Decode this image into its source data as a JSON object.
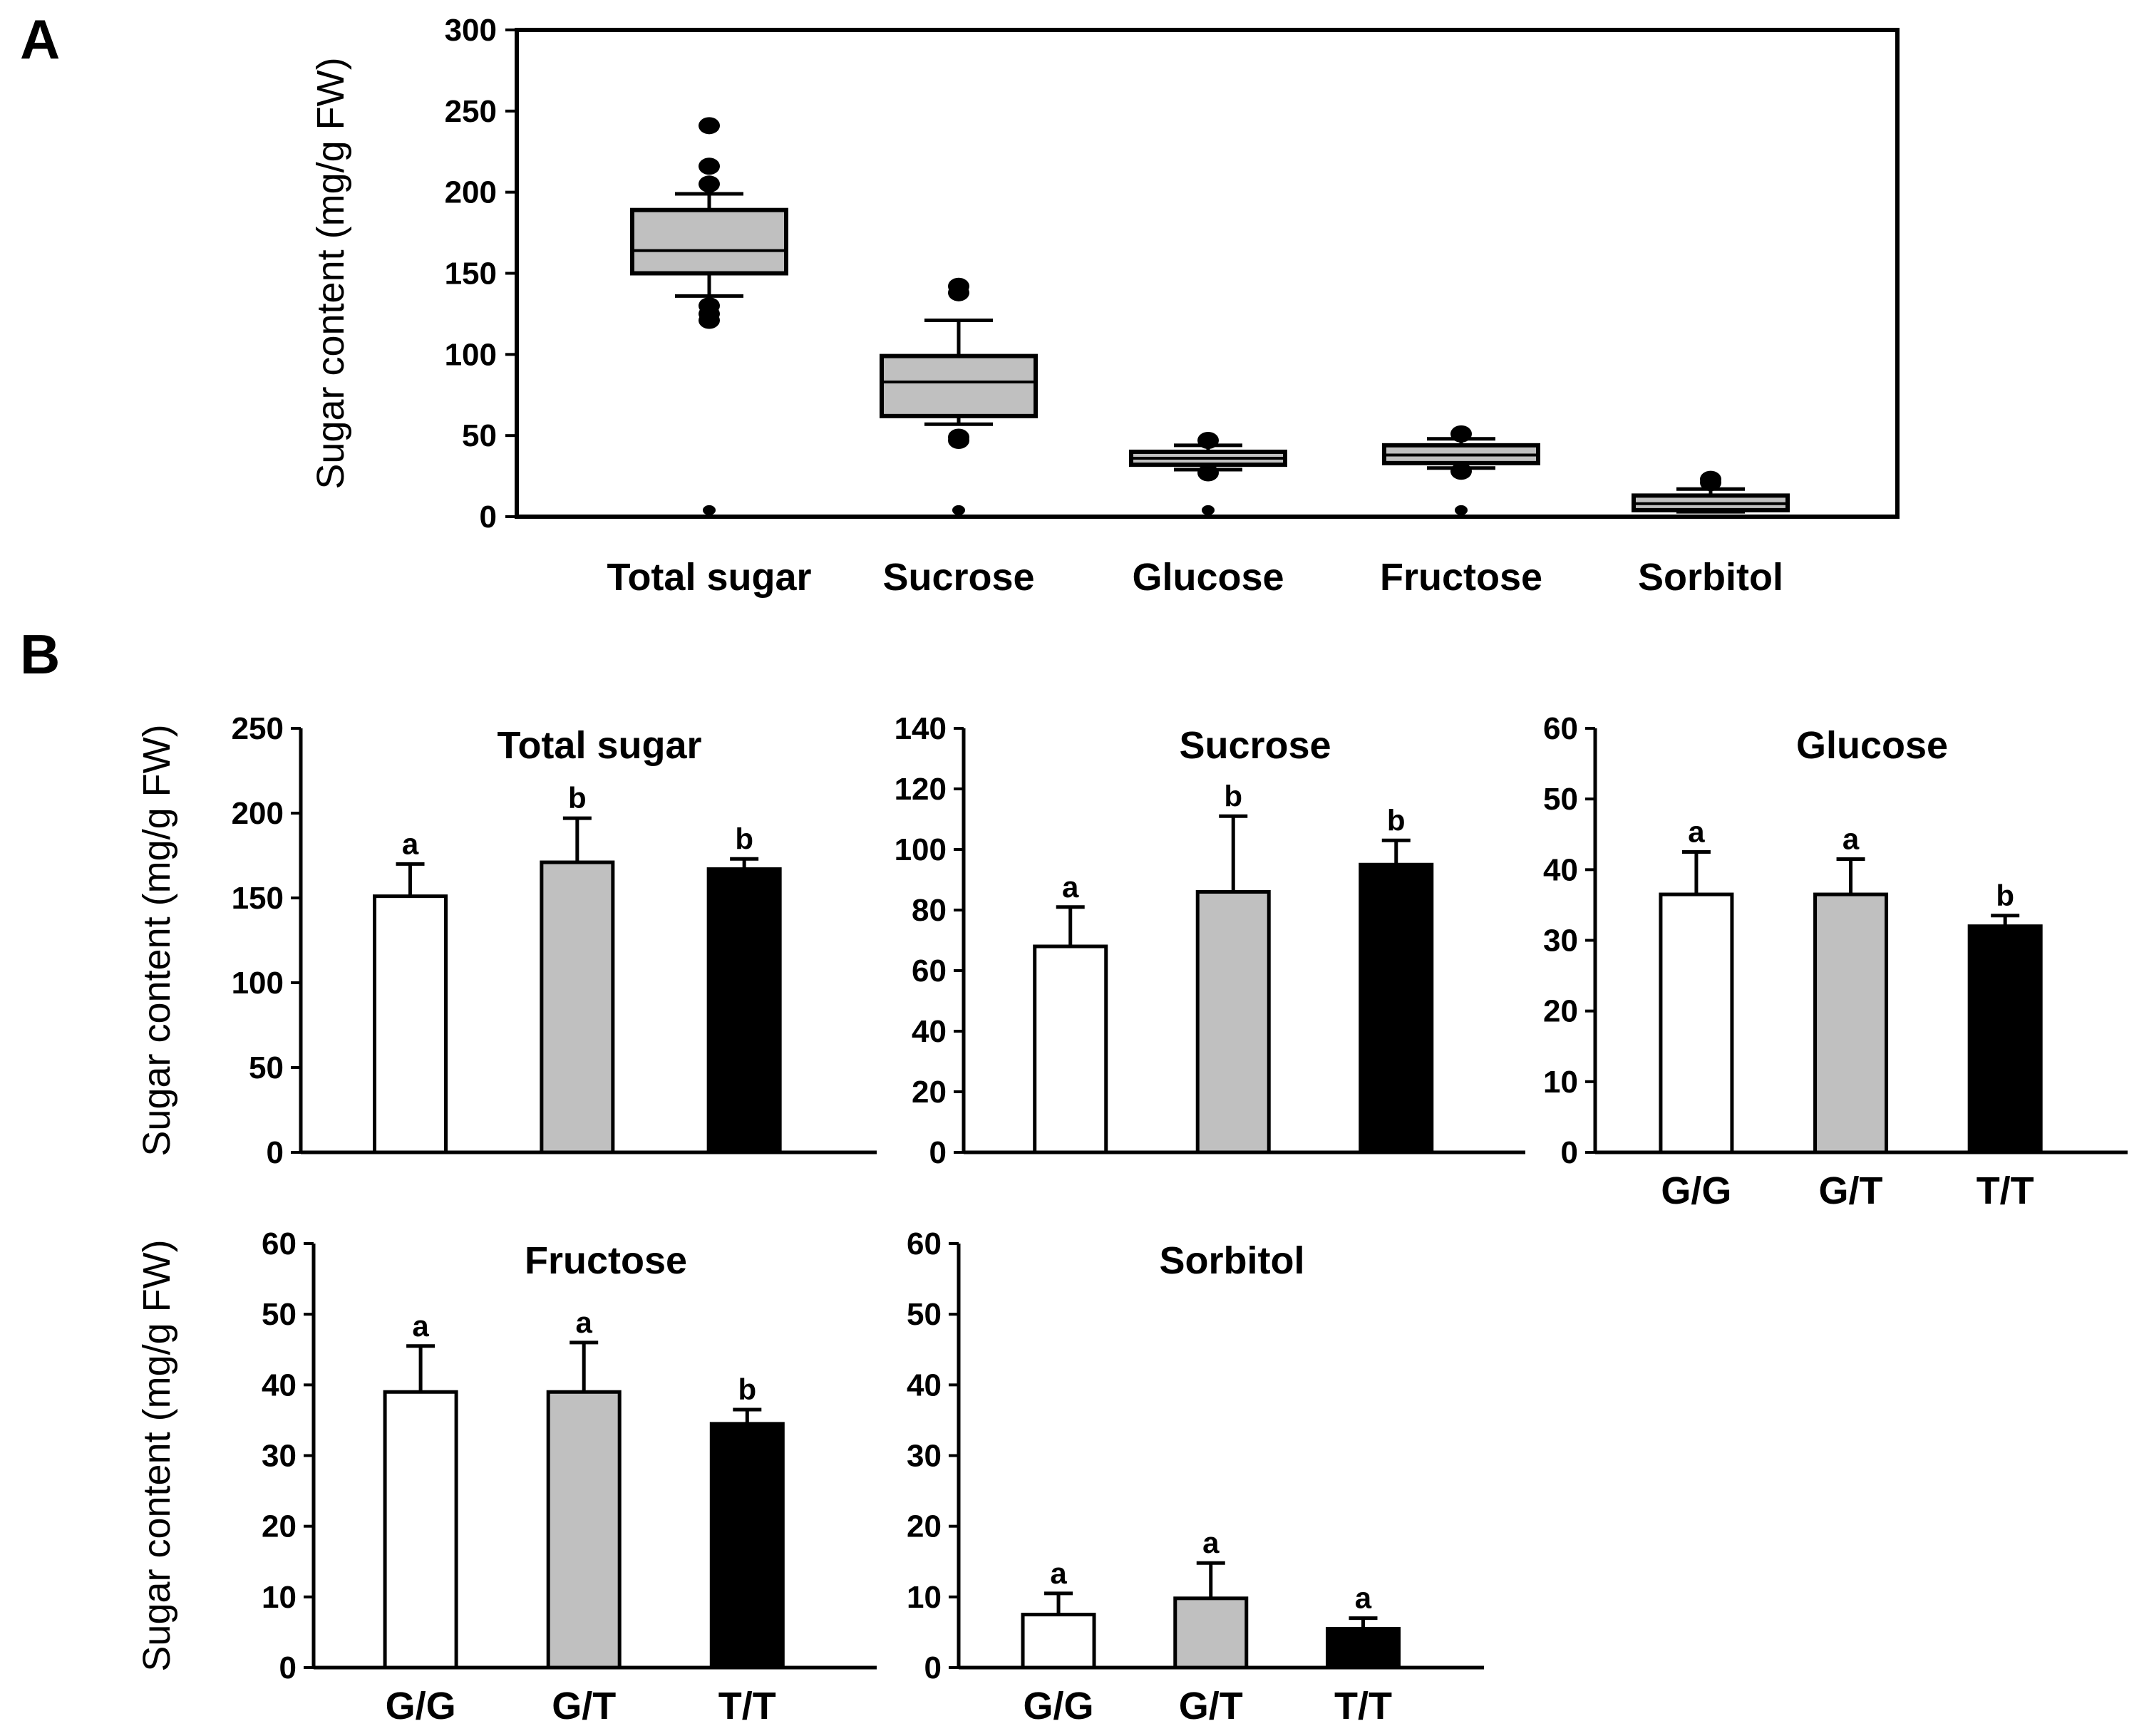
{
  "panel_labels": {
    "a": "A",
    "b": "B"
  },
  "chart_data": [
    {
      "id": "boxplot",
      "type": "box",
      "ylabel": "Sugar content (mg/g FW)",
      "ylim": [
        0,
        300
      ],
      "yticks": [
        0,
        50,
        100,
        150,
        200,
        250,
        300
      ],
      "categories": [
        "Total sugar",
        "Sucrose",
        "Glucose",
        "Fructose",
        "Sorbitol"
      ],
      "boxes": [
        {
          "whisker_low": 136,
          "q1": 150,
          "median": 164,
          "q3": 189,
          "whisker_high": 199,
          "outliers": [
            121,
            125,
            130,
            205,
            216,
            241,
            4
          ]
        },
        {
          "whisker_low": 57,
          "q1": 62,
          "median": 83,
          "q3": 99,
          "whisker_high": 121,
          "outliers": [
            47,
            49,
            138,
            142,
            4
          ]
        },
        {
          "whisker_low": 29,
          "q1": 32,
          "median": 36,
          "q3": 40,
          "whisker_high": 44,
          "outliers": [
            27,
            47,
            4
          ]
        },
        {
          "whisker_low": 30,
          "q1": 33,
          "median": 38,
          "q3": 44,
          "whisker_high": 48,
          "outliers": [
            28,
            51,
            4
          ]
        },
        {
          "whisker_low": 3,
          "q1": 4,
          "median": 8,
          "q3": 13,
          "whisker_high": 17,
          "outliers": [
            21,
            23
          ]
        }
      ],
      "outlier_style": "filled black circles"
    },
    {
      "id": "total_sugar",
      "type": "bar",
      "title": "Total sugar",
      "ylabel": "Sugar content (mg/g FW)",
      "ylim": [
        0,
        250
      ],
      "yticks": [
        0,
        50,
        100,
        150,
        200,
        250
      ],
      "categories": [
        "G/G",
        "G/T",
        "T/T"
      ],
      "show_xticklabels": false,
      "values": [
        151,
        171,
        167
      ],
      "errors": [
        19,
        26,
        6
      ],
      "letters": [
        "a",
        "b",
        "b"
      ],
      "colors": [
        "#ffffff",
        "#c0c0c0",
        "#000000"
      ]
    },
    {
      "id": "sucrose",
      "type": "bar",
      "title": "Sucrose",
      "ylabel": "",
      "ylim": [
        0,
        140
      ],
      "yticks": [
        0,
        20,
        40,
        60,
        80,
        100,
        120,
        140
      ],
      "categories": [
        "G/G",
        "G/T",
        "T/T"
      ],
      "show_xticklabels": false,
      "values": [
        68,
        86,
        95
      ],
      "errors": [
        13,
        25,
        8
      ],
      "letters": [
        "a",
        "b",
        "b"
      ],
      "colors": [
        "#ffffff",
        "#c0c0c0",
        "#000000"
      ]
    },
    {
      "id": "glucose",
      "type": "bar",
      "title": "Glucose",
      "ylabel": "",
      "ylim": [
        0,
        60
      ],
      "yticks": [
        0,
        10,
        20,
        30,
        40,
        50,
        60
      ],
      "categories": [
        "G/G",
        "G/T",
        "T/T"
      ],
      "show_xticklabels": true,
      "values": [
        36.5,
        36.5,
        32
      ],
      "errors": [
        6,
        5,
        1.5
      ],
      "letters": [
        "a",
        "a",
        "b"
      ],
      "colors": [
        "#ffffff",
        "#c0c0c0",
        "#000000"
      ]
    },
    {
      "id": "fructose",
      "type": "bar",
      "title": "Fructose",
      "ylabel": "Sugar content (mg/g FW)",
      "ylim": [
        0,
        60
      ],
      "yticks": [
        0,
        10,
        20,
        30,
        40,
        50,
        60
      ],
      "categories": [
        "G/G",
        "G/T",
        "T/T"
      ],
      "show_xticklabels": true,
      "values": [
        39,
        39,
        34.5
      ],
      "errors": [
        6.5,
        7,
        2
      ],
      "letters": [
        "a",
        "a",
        "b"
      ],
      "colors": [
        "#ffffff",
        "#c0c0c0",
        "#000000"
      ]
    },
    {
      "id": "sorbitol",
      "type": "bar",
      "title": "Sorbitol",
      "ylabel": "",
      "ylim": [
        0,
        60
      ],
      "yticks": [
        0,
        10,
        20,
        30,
        40,
        50,
        60
      ],
      "categories": [
        "G/G",
        "G/T",
        "T/T"
      ],
      "show_xticklabels": true,
      "values": [
        7.5,
        9.8,
        5.5
      ],
      "errors": [
        3,
        5,
        1.5
      ],
      "letters": [
        "a",
        "a",
        "a"
      ],
      "colors": [
        "#ffffff",
        "#c0c0c0",
        "#000000"
      ]
    }
  ]
}
